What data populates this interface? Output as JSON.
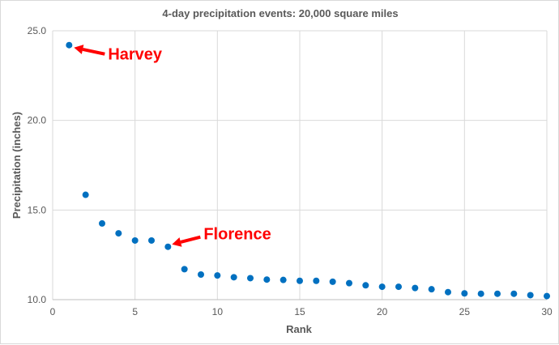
{
  "chart_data": {
    "type": "scatter",
    "title": "4-day precipitation events:  20,000 square miles",
    "xlabel": "Rank",
    "ylabel": "Precipitation (inches)",
    "xlim": [
      0,
      30
    ],
    "ylim": [
      10.0,
      25.0
    ],
    "x_ticks": [
      "0",
      "5",
      "10",
      "15",
      "20",
      "25",
      "30"
    ],
    "y_ticks": [
      "10.0",
      "15.0",
      "20.0",
      "25.0"
    ],
    "grid": true,
    "marker_color": "#0070c0",
    "annotation_color": "#ff0000",
    "x": [
      1,
      2,
      3,
      4,
      5,
      6,
      7,
      8,
      9,
      10,
      11,
      12,
      13,
      14,
      15,
      16,
      17,
      18,
      19,
      20,
      21,
      22,
      23,
      24,
      25,
      26,
      27,
      28,
      29,
      30
    ],
    "y": [
      24.2,
      15.85,
      14.25,
      13.7,
      13.3,
      13.3,
      12.95,
      11.7,
      11.4,
      11.35,
      11.25,
      11.2,
      11.12,
      11.1,
      11.05,
      11.05,
      11.0,
      10.92,
      10.8,
      10.72,
      10.72,
      10.65,
      10.58,
      10.42,
      10.35,
      10.33,
      10.33,
      10.33,
      10.25,
      10.2
    ],
    "annotations": [
      {
        "text": "Harvey",
        "point_index": 0
      },
      {
        "text": "Florence",
        "point_index": 6
      }
    ]
  }
}
